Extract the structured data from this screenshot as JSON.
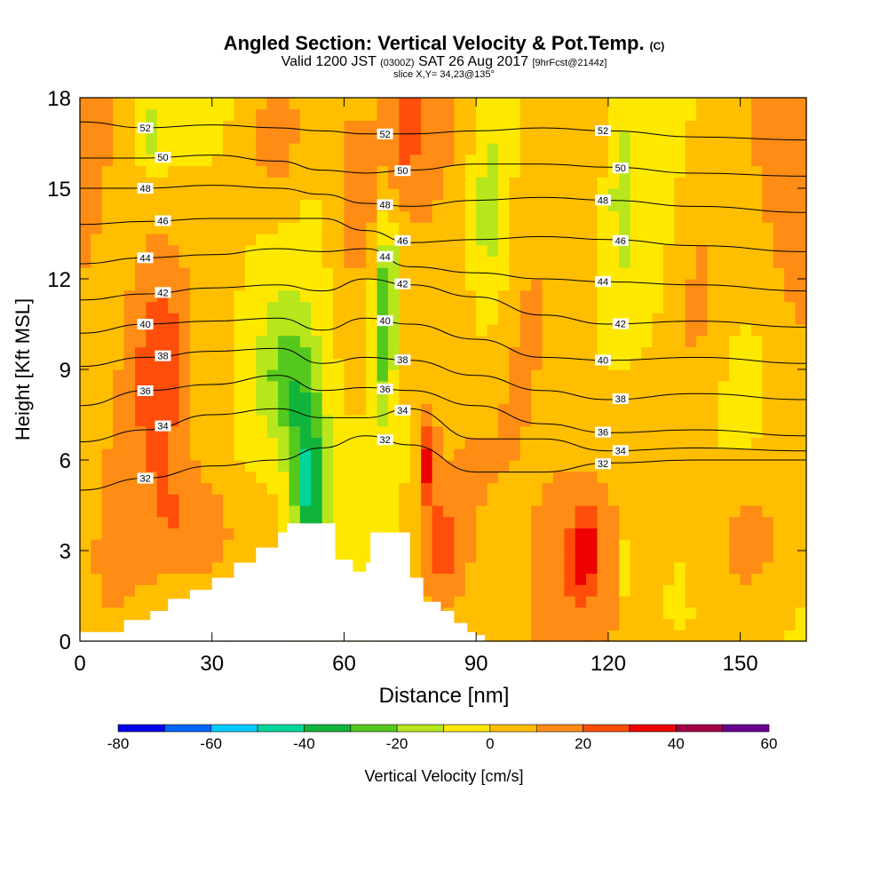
{
  "header": {
    "title": "Angled Section: Vertical Velocity & Pot.Temp.",
    "title_unit": "(C)",
    "valid_prefix": "Valid 1200 JST",
    "valid_z": "(0300Z)",
    "valid_date": "SAT 26 Aug 2017",
    "forecast": "[9hrFcst@2144z]",
    "slice": "slice X,Y= 34,23@135°"
  },
  "chart_data": {
    "type": "heatmap",
    "xlabel": "Distance [nm]",
    "ylabel": "Height [Kft MSL]",
    "xlim": [
      0,
      165
    ],
    "ylim": [
      0,
      18
    ],
    "x_ticks": [
      0,
      30,
      60,
      90,
      120,
      150
    ],
    "y_ticks": [
      0,
      3,
      6,
      9,
      12,
      15,
      18
    ],
    "colorbar": {
      "label": "Vertical Velocity [cm/s]",
      "ticks": [
        -80,
        -60,
        -40,
        -20,
        0,
        20,
        40,
        60
      ],
      "bins": [
        -80,
        -70,
        -60,
        -50,
        -40,
        -30,
        -20,
        -10,
        0,
        10,
        20,
        30,
        40,
        50,
        60
      ],
      "colors": [
        "#0000ee",
        "#0064ff",
        "#00ccff",
        "#00d69a",
        "#11b43a",
        "#55c81e",
        "#b7e61c",
        "#ffe800",
        "#ffbe00",
        "#ff8c14",
        "#ff4e0a",
        "#ee0000",
        "#a20046",
        "#6a0090"
      ]
    },
    "theta_contours": [
      {
        "value": 32,
        "height_kft": [
          5.0,
          5.4,
          5.8,
          6.0,
          6.4,
          6.8,
          6.5,
          5.6,
          5.6,
          5.9,
          6.0,
          6.0
        ]
      },
      {
        "value": 34,
        "height_kft": [
          6.6,
          7.0,
          7.5,
          7.7,
          7.4,
          7.4,
          7.7,
          6.7,
          6.7,
          6.3,
          6.4,
          6.3
        ]
      },
      {
        "value": 36,
        "height_kft": [
          7.8,
          8.3,
          8.5,
          8.8,
          8.3,
          8.4,
          8.3,
          7.8,
          7.2,
          6.9,
          7.0,
          6.8
        ]
      },
      {
        "value": 38,
        "height_kft": [
          9.1,
          9.4,
          9.6,
          9.7,
          9.2,
          9.4,
          9.3,
          8.8,
          8.3,
          8.0,
          8.2,
          8.0
        ]
      },
      {
        "value": 40,
        "height_kft": [
          10.2,
          10.5,
          10.6,
          10.7,
          10.3,
          10.7,
          10.5,
          10.0,
          9.4,
          9.3,
          9.4,
          9.2
        ]
      },
      {
        "value": 42,
        "height_kft": [
          11.3,
          11.5,
          11.7,
          11.8,
          11.6,
          12.0,
          11.8,
          11.4,
          10.8,
          10.5,
          10.6,
          10.4
        ]
      },
      {
        "value": 44,
        "height_kft": [
          12.5,
          12.7,
          12.8,
          13.0,
          12.9,
          13.0,
          12.4,
          12.2,
          12.0,
          11.9,
          11.8,
          11.6
        ]
      },
      {
        "value": 46,
        "height_kft": [
          13.8,
          13.9,
          14.0,
          14.0,
          14.0,
          13.6,
          13.2,
          13.3,
          13.4,
          13.3,
          13.1,
          12.9
        ]
      },
      {
        "value": 48,
        "height_kft": [
          15.0,
          15.0,
          15.1,
          15.0,
          14.8,
          14.5,
          14.4,
          14.6,
          14.7,
          14.6,
          14.4,
          14.2
        ]
      },
      {
        "value": 50,
        "height_kft": [
          16.0,
          16.0,
          16.1,
          15.9,
          15.6,
          15.5,
          15.6,
          15.8,
          15.8,
          15.7,
          15.5,
          15.4
        ]
      },
      {
        "value": 52,
        "height_kft": [
          17.2,
          17.0,
          17.1,
          17.0,
          16.9,
          16.8,
          16.8,
          16.9,
          17.0,
          16.9,
          16.7,
          16.6
        ]
      }
    ],
    "contour_x_nm": [
      0,
      15,
      30,
      45,
      55,
      65,
      75,
      90,
      105,
      120,
      140,
      165
    ],
    "contour_labels": [
      "32",
      "34",
      "36",
      "38",
      "40",
      "42",
      "44",
      "46",
      "48",
      "50",
      "52"
    ],
    "terrain": {
      "x_nm": [
        0,
        10,
        16,
        20,
        25,
        30,
        35,
        40,
        45,
        47,
        55,
        58,
        62,
        65,
        66,
        72,
        75,
        78,
        82,
        85,
        88,
        90,
        92
      ],
      "height_kft": [
        0.3,
        0.7,
        1.0,
        1.4,
        1.7,
        2.1,
        2.6,
        3.1,
        3.6,
        3.9,
        3.9,
        2.7,
        2.3,
        2.6,
        3.6,
        3.6,
        2.1,
        1.3,
        1.0,
        0.6,
        0.3,
        0.2,
        0.0
      ]
    }
  }
}
